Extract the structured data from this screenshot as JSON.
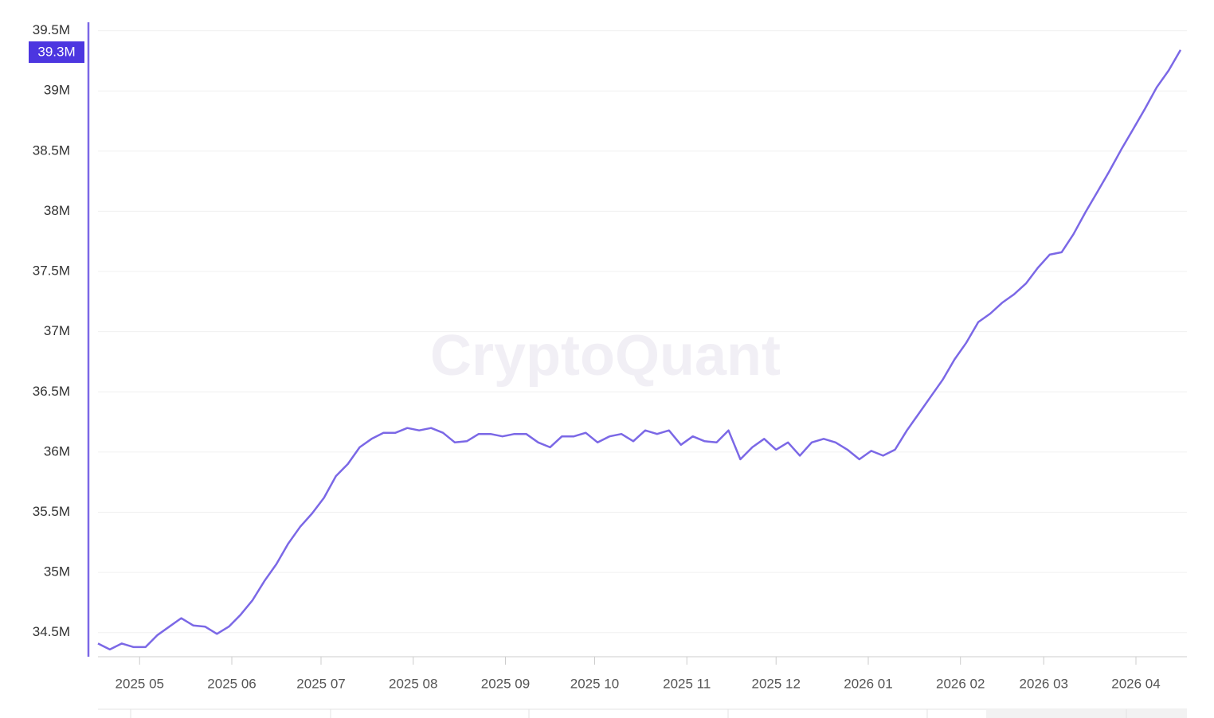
{
  "chart_data": {
    "type": "line",
    "watermark": "CryptoQuant",
    "current_value_label": "39.3M",
    "xlim": [
      0,
      91
    ],
    "xticks": [
      {
        "value": 3.5,
        "label": "2025 05"
      },
      {
        "value": 11.25,
        "label": "2025 06"
      },
      {
        "value": 18.75,
        "label": "2025 07"
      },
      {
        "value": 26.5,
        "label": "2025 08"
      },
      {
        "value": 34.25,
        "label": "2025 09"
      },
      {
        "value": 41.75,
        "label": "2025 10"
      },
      {
        "value": 49.5,
        "label": "2025 11"
      },
      {
        "value": 57,
        "label": "2025 12"
      },
      {
        "value": 64.75,
        "label": "2026 01"
      },
      {
        "value": 72.5,
        "label": "2026 02"
      },
      {
        "value": 79.5,
        "label": "2026 03"
      },
      {
        "value": 87.25,
        "label": "2026 04"
      }
    ],
    "ylim": [
      34300000,
      39570000
    ],
    "yticks": [
      {
        "value": 34500000,
        "label": "34.5M"
      },
      {
        "value": 35000000,
        "label": "35M"
      },
      {
        "value": 35500000,
        "label": "35.5M"
      },
      {
        "value": 36000000,
        "label": "36M"
      },
      {
        "value": 36500000,
        "label": "36.5M"
      },
      {
        "value": 37000000,
        "label": "37M"
      },
      {
        "value": 37500000,
        "label": "37.5M"
      },
      {
        "value": 38000000,
        "label": "38M"
      },
      {
        "value": 38500000,
        "label": "38.5M"
      },
      {
        "value": 39000000,
        "label": "39M"
      },
      {
        "value": 39500000,
        "label": "39.5M"
      }
    ],
    "grid": true,
    "color": "#7b68e6",
    "values": [
      34410000,
      34360000,
      34410000,
      34380000,
      34380000,
      34480000,
      34550000,
      34620000,
      34560000,
      34550000,
      34490000,
      34550000,
      34650000,
      34770000,
      34930000,
      35070000,
      35240000,
      35380000,
      35490000,
      35620000,
      35800000,
      35900000,
      36040000,
      36110000,
      36160000,
      36160000,
      36200000,
      36180000,
      36200000,
      36160000,
      36080000,
      36090000,
      36150000,
      36150000,
      36130000,
      36150000,
      36150000,
      36080000,
      36040000,
      36130000,
      36130000,
      36160000,
      36080000,
      36130000,
      36150000,
      36090000,
      36180000,
      36150000,
      36180000,
      36060000,
      36130000,
      36090000,
      36080000,
      36180000,
      35940000,
      36040000,
      36110000,
      36020000,
      36080000,
      35970000,
      36080000,
      36110000,
      36080000,
      36020000,
      35940000,
      36010000,
      35970000,
      36020000,
      36180000,
      36320000,
      36460000,
      36600000,
      36770000,
      36910000,
      37080000,
      37150000,
      37240000,
      37310000,
      37400000,
      37530000,
      37640000,
      37660000,
      37810000,
      37990000,
      38160000,
      38330000,
      38510000,
      38680000,
      38850000,
      39030000,
      39170000,
      39340000
    ]
  }
}
